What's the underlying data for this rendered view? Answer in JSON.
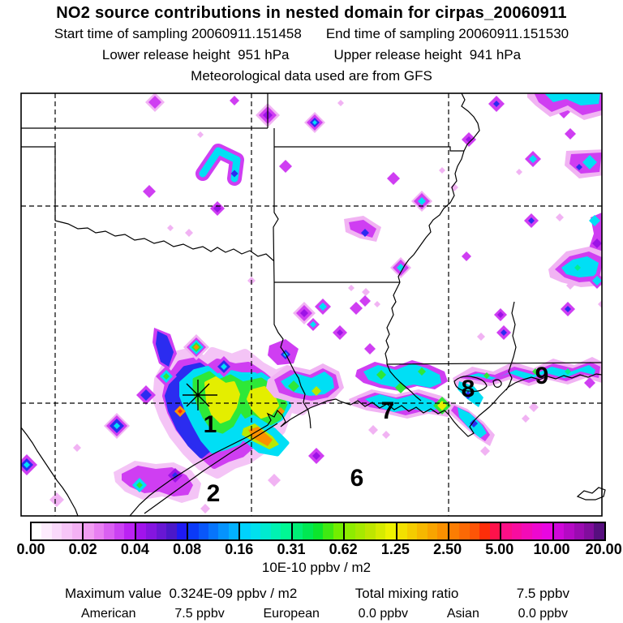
{
  "header": {
    "title": "NO2 source contributions in nested domain for cirpas_20060911",
    "start_label": "Start time of sampling 20060911.151458",
    "end_label": "End time of sampling 20060911.151530",
    "lower_release_label": "Lower release height  951 hPa",
    "upper_release_label": "Upper release height  941 hPa",
    "met_label": "Meteorological data used are from GFS"
  },
  "map": {
    "labels": {
      "n1": "1",
      "n2": "2",
      "n6": "6",
      "n7": "7",
      "n8": "8",
      "n9": "9"
    },
    "marker": "release-location-asterisk"
  },
  "colorbar": {
    "tick_labels": [
      "0.00",
      "0.02",
      "0.04",
      "0.08",
      "0.16",
      "0.31",
      "0.62",
      "1.25",
      "2.50",
      "5.00",
      "10.00",
      "20.00"
    ],
    "units_label": "10E-10 ppbv / m2",
    "segments": [
      [
        "#ffffff",
        "#fdecfd",
        "#fad9fb",
        "#f7c5f8",
        "#f4b1f4"
      ],
      [
        "#f19df2",
        "#e87ff2",
        "#da60f2",
        "#cb41f3",
        "#bb22f3"
      ],
      [
        "#a113ec",
        "#8515e0",
        "#6817d4",
        "#4b18c9",
        "#1f1af2"
      ],
      [
        "#0b3af8",
        "#0957fa",
        "#0775fc",
        "#0593fd",
        "#03b1fe"
      ],
      [
        "#00d2fd",
        "#00e0ee",
        "#00ead0",
        "#00f2b2",
        "#00f894"
      ],
      [
        "#00ee76",
        "#00e852",
        "#0ce52d",
        "#3fe912",
        "#72ee00"
      ],
      [
        "#8eec00",
        "#a6e900",
        "#bee600",
        "#d6eb00",
        "#eef200"
      ],
      [
        "#f2e000",
        "#f4cc00",
        "#f6b800",
        "#f8a400",
        "#fa9000"
      ],
      [
        "#fb7d03",
        "#fc6905",
        "#fd5507",
        "#fe2e09",
        "#fe124b"
      ],
      [
        "#fd0f87",
        "#f80d9f",
        "#f30bb7",
        "#ee08cf",
        "#e906e1"
      ],
      [
        "#cf07d9",
        "#b509c5",
        "#9b0bb1",
        "#810d9d",
        "#570f7f"
      ]
    ]
  },
  "footer": {
    "max_value_label": "Maximum value  0.324E-09 ppbv / m2",
    "total_mixing_label": "Total mixing ratio",
    "total_mixing_value": "7.5 ppbv",
    "regions": [
      {
        "name": "American",
        "value": "7.5 ppbv"
      },
      {
        "name": "European",
        "value": "0.0 ppbv"
      },
      {
        "name": "Asian",
        "value": "0.0 ppbv"
      }
    ]
  },
  "palette": {
    "halo_pink": "#f4c4f6",
    "violet": "#cf3ef2",
    "purple": "#9c13e6",
    "blue": "#2b2cf0",
    "cyan": "#00dff5",
    "green": "#2ee838",
    "yellow": "#e8f000",
    "orange": "#fb9000",
    "red": "#fe2a08"
  },
  "chart_data": {
    "type": "heatmap",
    "title": "NO2 source contributions in nested domain for cirpas_20060911",
    "subtitle": [
      "Start time of sampling 20060911.151458",
      "End time of sampling 20060911.151530",
      "Lower release height 951 hPa",
      "Upper release height 941 hPa",
      "Meteorological data used are from GFS"
    ],
    "colorbar_ticks": [
      0.0,
      0.02,
      0.04,
      0.08,
      0.16,
      0.31,
      0.62,
      1.25,
      2.5,
      5.0,
      10.0,
      20.0
    ],
    "colorbar_units": "10E-10 ppbv / m2",
    "scale": "logarithmic factor-of-2 bins",
    "max_value": "0.324E-09 ppbv / m2",
    "total_mixing_ratio": "7.5 ppbv",
    "source_contributions": {
      "American": "7.5 ppbv",
      "European": "0.0 ppbv",
      "Asian": "0.0 ppbv"
    },
    "map_region_labels": [
      "1",
      "2",
      "6",
      "7",
      "8",
      "9"
    ],
    "sampling": {
      "start": "20060911.151458",
      "end": "20060911.151530"
    },
    "release_heights_hPa": {
      "lower": 951,
      "upper": 941
    },
    "meteorology_source": "GFS",
    "legend_position": "bottom colorbar",
    "grid": "dashed graticule, 2 horizontal x 3 vertical lines",
    "notes": "Highest concentrations (green/yellow/orange cores) over Houston area (label 1) and along the Louisiana/Mississippi coast (labels 7,8,9); scattered violet/blue cells elsewhere; release point marked with asterisk near label 1."
  }
}
